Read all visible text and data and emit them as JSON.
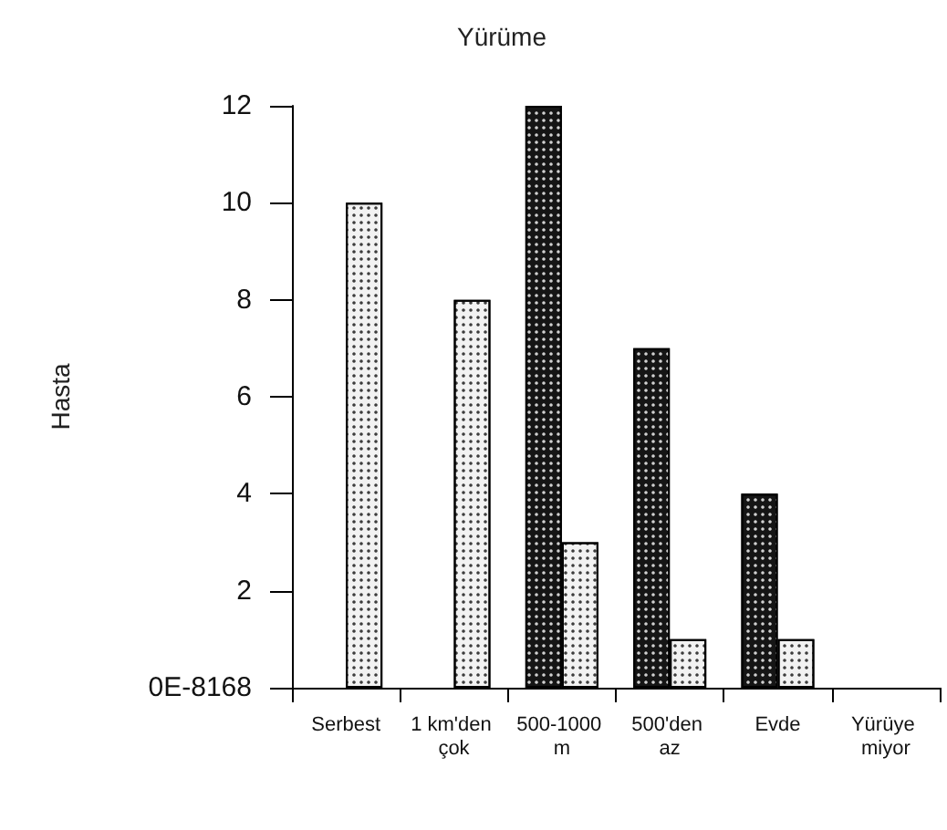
{
  "chart_data": {
    "type": "bar",
    "title": "Yürüme",
    "ylabel": "Hasta",
    "categories": [
      "Serbest",
      "1 km'den çok",
      "500-1000 m",
      "500'den az",
      "Evde",
      "Yürüye miyor"
    ],
    "series": [
      {
        "color": "#151515",
        "values": [
          0,
          0,
          12,
          7,
          4,
          0
        ]
      },
      {
        "color": "#f2f2f2",
        "values": [
          10,
          8,
          3,
          1,
          1,
          0
        ]
      }
    ],
    "ylim": [
      0,
      12
    ],
    "yticks": [
      {
        "value": 0,
        "label": "0E-8168"
      },
      2,
      4,
      6,
      8,
      10,
      12
    ],
    "grid": false
  }
}
